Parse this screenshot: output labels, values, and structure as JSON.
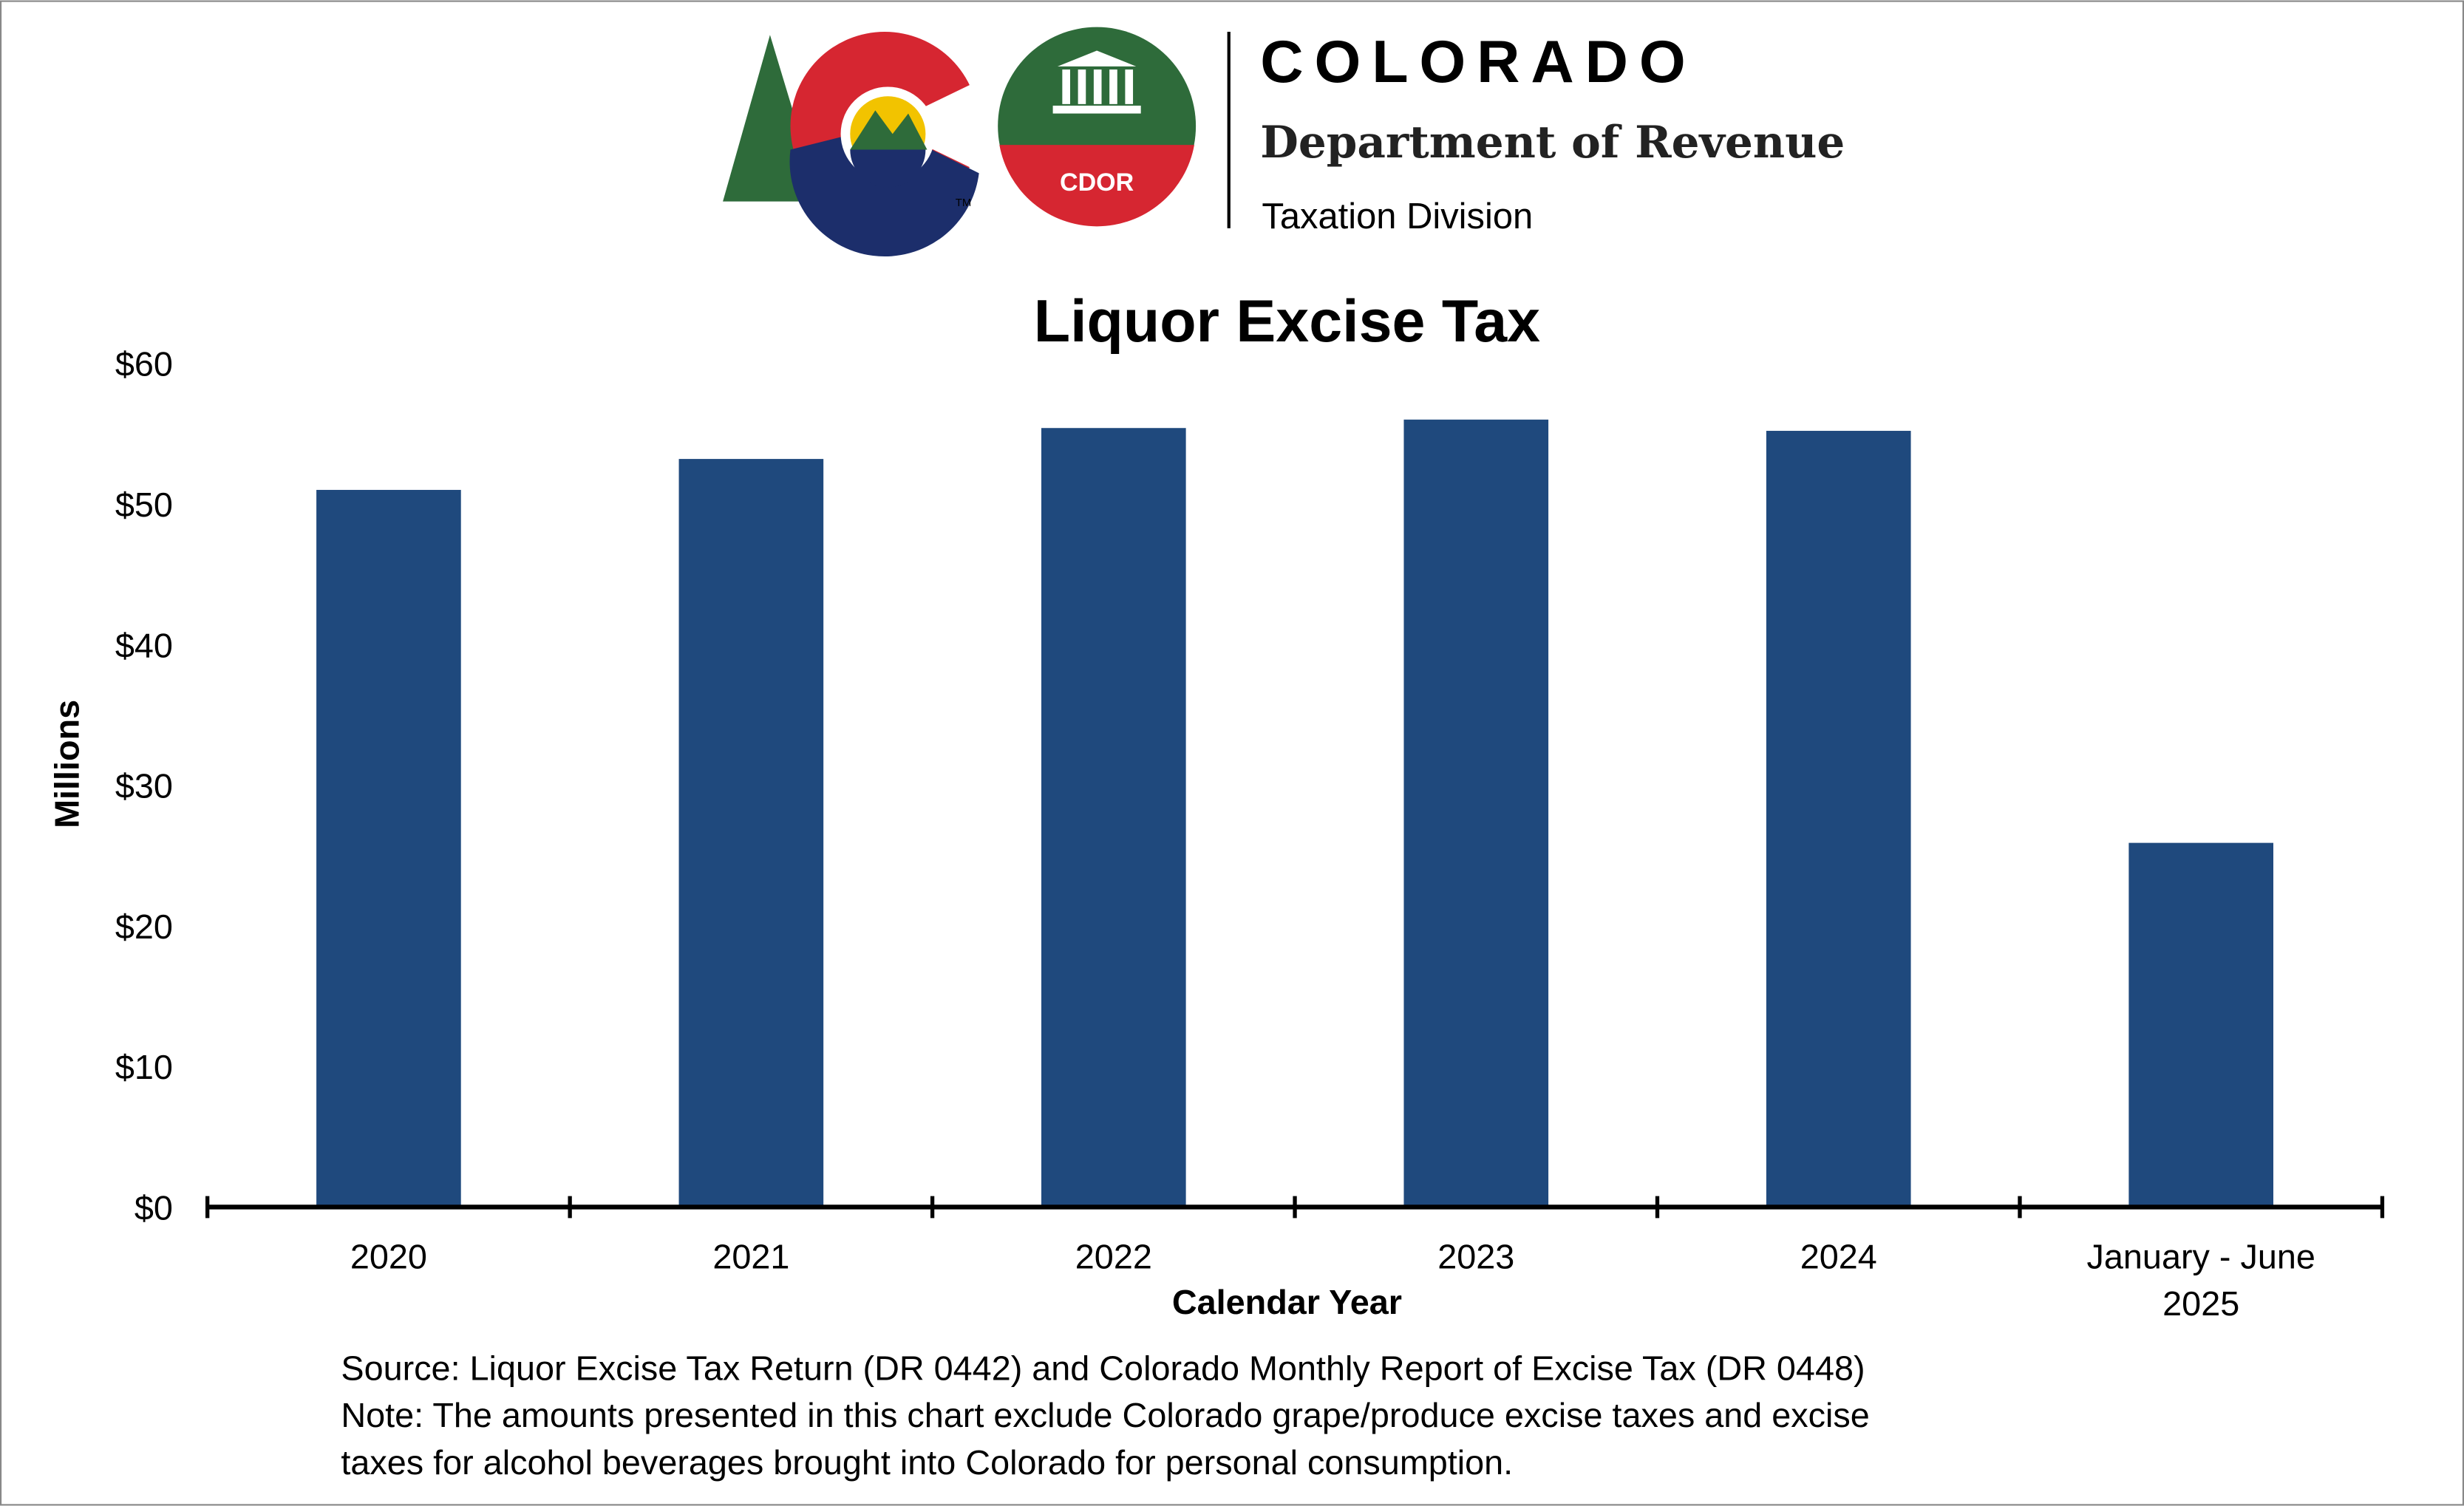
{
  "header": {
    "org_name": "COLORADO",
    "department": "Department of Revenue",
    "division": "Taxation Division",
    "badge_text": "CDOR",
    "trademark": "TM"
  },
  "colors": {
    "bar": "#1F497D",
    "tree": "#2E6B3A",
    "logo_red": "#D62631",
    "logo_blue": "#1C2E6B",
    "logo_gold": "#F2C300",
    "badge_green": "#2E6B3A"
  },
  "chart_data": {
    "type": "bar",
    "title": "Liquor Excise Tax",
    "xlabel": "Calendar Year",
    "ylabel": "Millions",
    "categories": [
      [
        "2020"
      ],
      [
        "2021"
      ],
      [
        "2022"
      ],
      [
        "2023"
      ],
      [
        "2024"
      ],
      [
        "January - June",
        "2025"
      ]
    ],
    "values": [
      51.0,
      53.2,
      55.4,
      56.0,
      55.2,
      25.9
    ],
    "ylim": [
      0,
      60
    ],
    "yticks": [
      0,
      10,
      20,
      30,
      40,
      50,
      60
    ],
    "ytick_labels": [
      "$0",
      "$10",
      "$20",
      "$30",
      "$40",
      "$50",
      "$60"
    ],
    "grid": false,
    "legend": "none"
  },
  "footnotes": [
    "Source: Liquor Excise Tax Return (DR 0442) and Colorado Monthly Report of Excise Tax (DR 0448)",
    "Note: The amounts presented in this chart exclude Colorado grape/produce excise taxes and excise",
    "taxes for alcohol beverages brought into Colorado for personal consumption."
  ]
}
